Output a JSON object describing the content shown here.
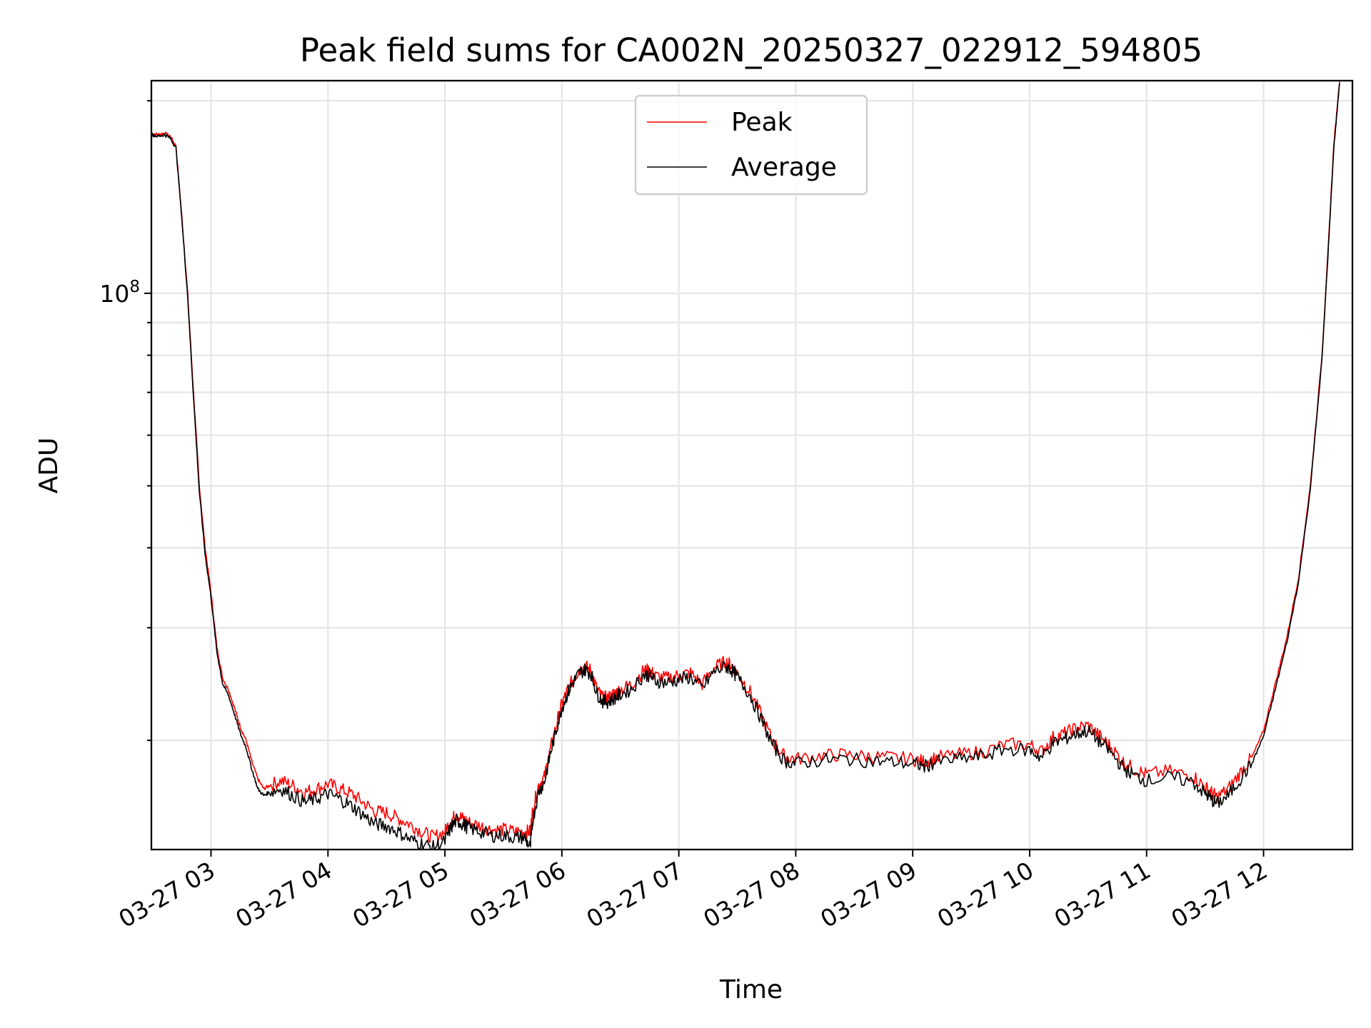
{
  "chart_data": {
    "type": "line",
    "title": "Peak field sums for CA002N_20250327_022912_594805",
    "xlabel": "Time",
    "ylabel": "ADU",
    "y_scale": "log",
    "ylim": [
      13500000,
      215000000
    ],
    "xlim": [
      2.49,
      12.76
    ],
    "grid": true,
    "legend_position": "upper-center",
    "x_ticks": [
      {
        "value": 3,
        "label": "03-27 03"
      },
      {
        "value": 4,
        "label": "03-27 04"
      },
      {
        "value": 5,
        "label": "03-27 05"
      },
      {
        "value": 6,
        "label": "03-27 06"
      },
      {
        "value": 7,
        "label": "03-27 07"
      },
      {
        "value": 8,
        "label": "03-27 08"
      },
      {
        "value": 9,
        "label": "03-27 09"
      },
      {
        "value": 10,
        "label": "03-27 10"
      },
      {
        "value": 11,
        "label": "03-27 11"
      },
      {
        "value": 12,
        "label": "03-27 12"
      }
    ],
    "y_major_ticks": [
      {
        "value": 100000000,
        "base": "10",
        "exp": "8"
      }
    ],
    "y_minor_ticks": [
      20000000,
      30000000,
      40000000,
      50000000,
      60000000,
      70000000,
      80000000,
      90000000,
      200000000
    ],
    "x": [
      2.49,
      2.55,
      2.6,
      2.65,
      2.7,
      2.75,
      2.8,
      2.85,
      2.9,
      2.95,
      3.0,
      3.05,
      3.1,
      3.15,
      3.2,
      3.25,
      3.3,
      3.35,
      3.4,
      3.45,
      3.5,
      3.6,
      3.7,
      3.8,
      3.9,
      4.0,
      4.1,
      4.2,
      4.3,
      4.4,
      4.5,
      4.6,
      4.7,
      4.8,
      4.9,
      5.0,
      5.05,
      5.1,
      5.15,
      5.2,
      5.3,
      5.4,
      5.5,
      5.6,
      5.68,
      5.73,
      5.75,
      5.8,
      5.85,
      5.9,
      5.95,
      6.0,
      6.05,
      6.1,
      6.15,
      6.2,
      6.25,
      6.3,
      6.35,
      6.4,
      6.45,
      6.5,
      6.6,
      6.7,
      6.75,
      6.8,
      6.9,
      7.0,
      7.1,
      7.2,
      7.3,
      7.4,
      7.45,
      7.5,
      7.6,
      7.7,
      7.8,
      7.9,
      8.0,
      8.2,
      8.4,
      8.6,
      8.8,
      9.0,
      9.1,
      9.2,
      9.4,
      9.6,
      9.8,
      10.0,
      10.1,
      10.2,
      10.3,
      10.4,
      10.5,
      10.6,
      10.7,
      10.8,
      10.9,
      11.0,
      11.2,
      11.4,
      11.5,
      11.55,
      11.6,
      11.7,
      11.8,
      11.9,
      12.0,
      12.1,
      12.2,
      12.3,
      12.4,
      12.5,
      12.55,
      12.6,
      12.65
    ],
    "series": [
      {
        "name": "Peak",
        "color": "#ff0000",
        "values": [
          178000000,
          177000000,
          178000000,
          176000000,
          170000000,
          132000000,
          100000000,
          70000000,
          50000000,
          40000000,
          34000000,
          28000000,
          25000000,
          24000000,
          22500000,
          21000000,
          20000000,
          18500000,
          17400000,
          16800000,
          17000000,
          17300000,
          17000000,
          16600000,
          16800000,
          17100000,
          16800000,
          16500000,
          16000000,
          15500000,
          15400000,
          15100000,
          14800000,
          14400000,
          14100000,
          14400000,
          15000000,
          15300000,
          15100000,
          14900000,
          14700000,
          14500000,
          14500000,
          14400000,
          14400000,
          14400000,
          15500000,
          17000000,
          17500000,
          19300000,
          21000000,
          22800000,
          24000000,
          25000000,
          25800000,
          26100000,
          25700000,
          24000000,
          23300000,
          23300000,
          23700000,
          24000000,
          24500000,
          25700000,
          25700000,
          25200000,
          25000000,
          25300000,
          25500000,
          24500000,
          26000000,
          26500000,
          26200000,
          25500000,
          24000000,
          22000000,
          20000000,
          18900000,
          18700000,
          18900000,
          19000000,
          18900000,
          18800000,
          18700000,
          18500000,
          18800000,
          19000000,
          19200000,
          19700000,
          19700000,
          19200000,
          20200000,
          20500000,
          20900000,
          21100000,
          20300000,
          19500000,
          18500000,
          18000000,
          17700000,
          17900000,
          17600000,
          16900000,
          16600000,
          16300000,
          16800000,
          17800000,
          18800000,
          20700000,
          24500000,
          29000000,
          36000000,
          50000000,
          80000000,
          115000000,
          170000000,
          215000000
        ]
      },
      {
        "name": "Average",
        "color": "#000000",
        "values": [
          177000000,
          176000000,
          177000000,
          175000000,
          169000000,
          131000000,
          99000000,
          69000000,
          49000000,
          39000000,
          33500000,
          27500000,
          24500000,
          23500000,
          22000000,
          20500000,
          19500000,
          18000000,
          16800000,
          16400000,
          16600000,
          16800000,
          16400000,
          16000000,
          16200000,
          16500000,
          16200000,
          15800000,
          15300000,
          14800000,
          14700000,
          14400000,
          14000000,
          13800000,
          13600000,
          13900000,
          14600000,
          15000000,
          14800000,
          14600000,
          14400000,
          14200000,
          14200000,
          14100000,
          14100000,
          13600000,
          15000000,
          16600000,
          17200000,
          19000000,
          20700000,
          22500000,
          23700000,
          24700000,
          25500000,
          25800000,
          25400000,
          23700000,
          23000000,
          23000000,
          23300000,
          23600000,
          24100000,
          25300000,
          25300000,
          24800000,
          24600000,
          24900000,
          25100000,
          24100000,
          25600000,
          26100000,
          25800000,
          25100000,
          23700000,
          21700000,
          19700000,
          18600000,
          18400000,
          18600000,
          18700000,
          18600000,
          18500000,
          18400000,
          18200000,
          18500000,
          18700000,
          18900000,
          19400000,
          19300000,
          18800000,
          19800000,
          20100000,
          20500000,
          20700000,
          19900000,
          19100000,
          18100000,
          17600000,
          17300000,
          17500000,
          17200000,
          16500000,
          16200000,
          15900000,
          16400000,
          17400000,
          18400000,
          20300000,
          24000000,
          28500000,
          35500000,
          49500000,
          79000000,
          114000000,
          168000000,
          213000000
        ]
      }
    ]
  }
}
